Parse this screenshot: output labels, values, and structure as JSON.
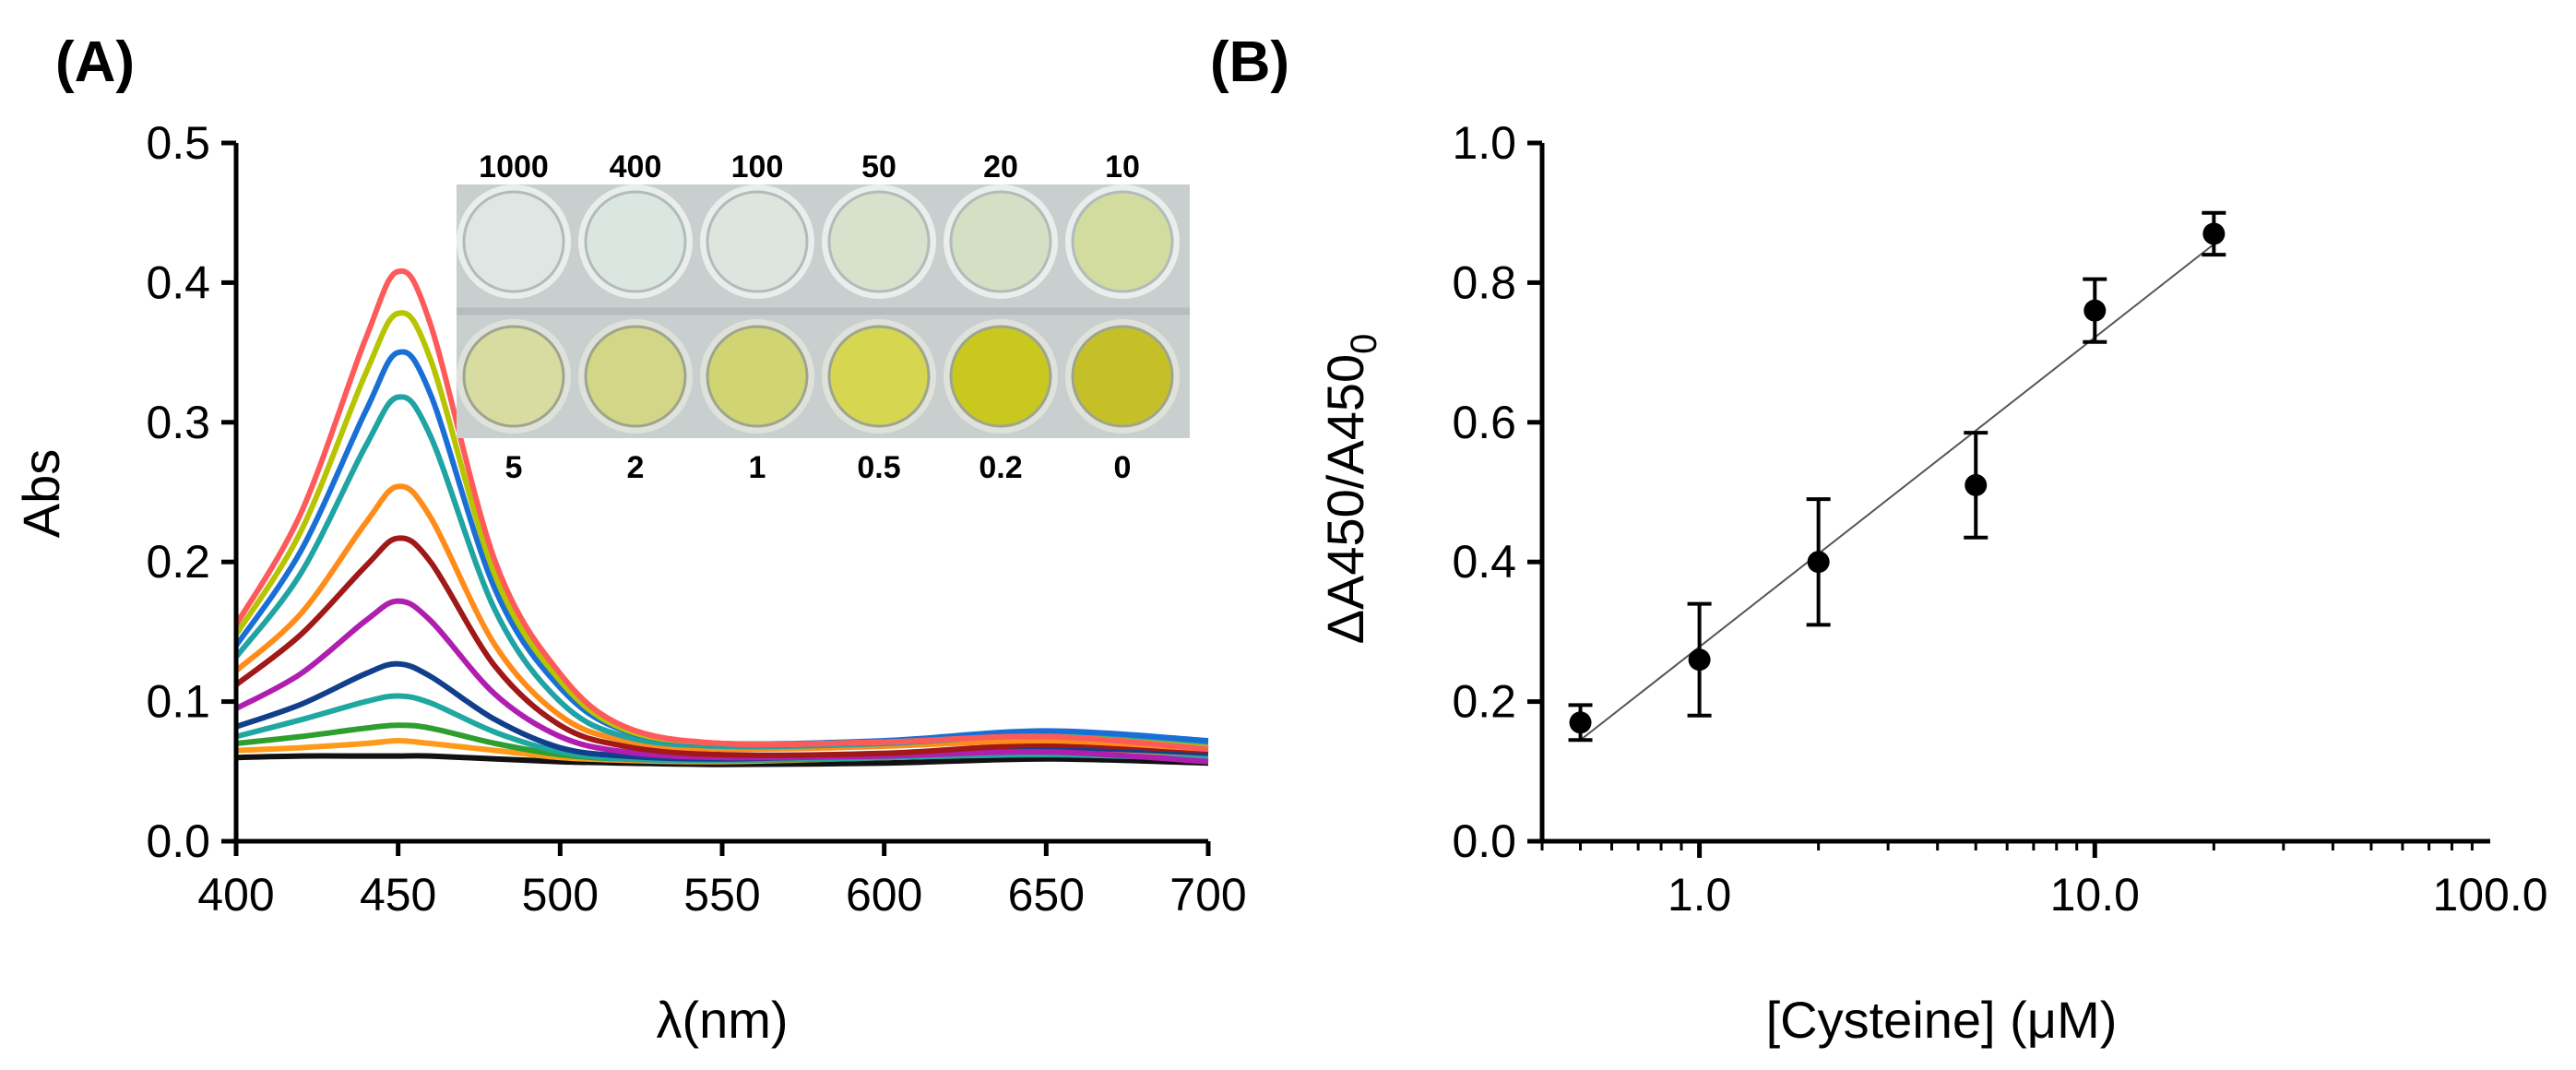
{
  "chart_data": [
    {
      "panel": "(A)",
      "type": "line",
      "xlabel": "λ(nm)",
      "ylabel": "Abs",
      "xlim": [
        400,
        700
      ],
      "ylim": [
        0,
        0.5
      ],
      "x_ticks": [
        "400",
        "450",
        "500",
        "550",
        "600",
        "650",
        "700"
      ],
      "y_ticks": [
        "0.0",
        "0.1",
        "0.2",
        "0.3",
        "0.4",
        "0.5"
      ],
      "grid": false,
      "legend": "none",
      "series": [
        {
          "name": "1000",
          "color": "#ff5a5a",
          "values": [
            [
              400,
              0.155
            ],
            [
              420,
              0.235
            ],
            [
              440,
              0.36
            ],
            [
              450,
              0.408
            ],
            [
              460,
              0.37
            ],
            [
              480,
              0.2
            ],
            [
              500,
              0.12
            ],
            [
              520,
              0.082
            ],
            [
              550,
              0.07
            ],
            [
              600,
              0.071
            ],
            [
              650,
              0.075
            ],
            [
              700,
              0.066
            ]
          ]
        },
        {
          "name": "400",
          "color": "#b7c400",
          "values": [
            [
              400,
              0.148
            ],
            [
              420,
              0.222
            ],
            [
              440,
              0.335
            ],
            [
              450,
              0.378
            ],
            [
              460,
              0.345
            ],
            [
              480,
              0.19
            ],
            [
              500,
              0.115
            ],
            [
              520,
              0.08
            ],
            [
              550,
              0.07
            ],
            [
              600,
              0.071
            ],
            [
              650,
              0.075
            ],
            [
              700,
              0.067
            ]
          ]
        },
        {
          "name": "100",
          "color": "#1a6fd6",
          "values": [
            [
              400,
              0.14
            ],
            [
              420,
              0.208
            ],
            [
              440,
              0.308
            ],
            [
              450,
              0.35
            ],
            [
              460,
              0.32
            ],
            [
              480,
              0.18
            ],
            [
              500,
              0.11
            ],
            [
              520,
              0.079
            ],
            [
              550,
              0.07
            ],
            [
              600,
              0.072
            ],
            [
              650,
              0.079
            ],
            [
              700,
              0.072
            ]
          ]
        },
        {
          "name": "50",
          "color": "#1fa3a3",
          "values": [
            [
              400,
              0.132
            ],
            [
              420,
              0.192
            ],
            [
              440,
              0.283
            ],
            [
              450,
              0.318
            ],
            [
              460,
              0.29
            ],
            [
              480,
              0.165
            ],
            [
              500,
              0.1
            ],
            [
              520,
              0.075
            ],
            [
              550,
              0.068
            ],
            [
              600,
              0.07
            ],
            [
              650,
              0.076
            ],
            [
              700,
              0.07
            ]
          ]
        },
        {
          "name": "20",
          "color": "#ff8c1a",
          "values": [
            [
              400,
              0.122
            ],
            [
              420,
              0.163
            ],
            [
              440,
              0.228
            ],
            [
              450,
              0.254
            ],
            [
              460,
              0.232
            ],
            [
              480,
              0.14
            ],
            [
              500,
              0.09
            ],
            [
              520,
              0.072
            ],
            [
              550,
              0.066
            ],
            [
              600,
              0.068
            ],
            [
              650,
              0.072
            ],
            [
              700,
              0.066
            ]
          ]
        },
        {
          "name": "10",
          "color": "#a01818",
          "values": [
            [
              400,
              0.112
            ],
            [
              420,
              0.148
            ],
            [
              440,
              0.197
            ],
            [
              450,
              0.217
            ],
            [
              460,
              0.2
            ],
            [
              480,
              0.125
            ],
            [
              500,
              0.083
            ],
            [
              520,
              0.068
            ],
            [
              550,
              0.062
            ],
            [
              600,
              0.063
            ],
            [
              650,
              0.069
            ],
            [
              700,
              0.065
            ]
          ]
        },
        {
          "name": "5",
          "color": "#b01eb0",
          "values": [
            [
              400,
              0.095
            ],
            [
              420,
              0.12
            ],
            [
              440,
              0.158
            ],
            [
              450,
              0.172
            ],
            [
              460,
              0.158
            ],
            [
              480,
              0.105
            ],
            [
              500,
              0.075
            ],
            [
              520,
              0.064
            ],
            [
              550,
              0.06
            ],
            [
              600,
              0.061
            ],
            [
              650,
              0.064
            ],
            [
              700,
              0.057
            ]
          ]
        },
        {
          "name": "2",
          "color": "#123f8c",
          "values": [
            [
              400,
              0.082
            ],
            [
              420,
              0.098
            ],
            [
              440,
              0.12
            ],
            [
              450,
              0.127
            ],
            [
              460,
              0.118
            ],
            [
              480,
              0.087
            ],
            [
              500,
              0.067
            ],
            [
              520,
              0.061
            ],
            [
              550,
              0.059
            ],
            [
              600,
              0.062
            ],
            [
              650,
              0.067
            ],
            [
              700,
              0.063
            ]
          ]
        },
        {
          "name": "1",
          "color": "#20a8a0",
          "values": [
            [
              400,
              0.075
            ],
            [
              420,
              0.087
            ],
            [
              440,
              0.1
            ],
            [
              450,
              0.104
            ],
            [
              460,
              0.099
            ],
            [
              480,
              0.078
            ],
            [
              500,
              0.064
            ],
            [
              520,
              0.059
            ],
            [
              550,
              0.058
            ],
            [
              600,
              0.06
            ],
            [
              650,
              0.062
            ],
            [
              700,
              0.059
            ]
          ]
        },
        {
          "name": "0.5",
          "color": "#2e9e2e",
          "values": [
            [
              400,
              0.07
            ],
            [
              420,
              0.075
            ],
            [
              440,
              0.081
            ],
            [
              450,
              0.083
            ],
            [
              460,
              0.081
            ],
            [
              480,
              0.07
            ],
            [
              500,
              0.062
            ],
            [
              520,
              0.059
            ],
            [
              550,
              0.058
            ],
            [
              600,
              0.06
            ],
            [
              650,
              0.066
            ],
            [
              700,
              0.07
            ]
          ]
        },
        {
          "name": "0.2",
          "color": "#ff9a1a",
          "values": [
            [
              400,
              0.065
            ],
            [
              420,
              0.067
            ],
            [
              440,
              0.07
            ],
            [
              450,
              0.072
            ],
            [
              460,
              0.07
            ],
            [
              480,
              0.065
            ],
            [
              500,
              0.06
            ],
            [
              520,
              0.058
            ],
            [
              550,
              0.057
            ],
            [
              600,
              0.06
            ],
            [
              650,
              0.064
            ],
            [
              700,
              0.062
            ]
          ]
        },
        {
          "name": "0",
          "color": "#111111",
          "values": [
            [
              400,
              0.06
            ],
            [
              420,
              0.061
            ],
            [
              440,
              0.061
            ],
            [
              450,
              0.061
            ],
            [
              460,
              0.061
            ],
            [
              480,
              0.059
            ],
            [
              500,
              0.057
            ],
            [
              520,
              0.056
            ],
            [
              550,
              0.055
            ],
            [
              600,
              0.056
            ],
            [
              650,
              0.059
            ],
            [
              700,
              0.056
            ]
          ]
        }
      ],
      "inset": {
        "description": "well plate photograph",
        "top_labels": [
          "1000",
          "400",
          "100",
          "50",
          "20",
          "10"
        ],
        "bottom_labels": [
          "5",
          "2",
          "1",
          "0.5",
          "0.2",
          "0"
        ],
        "top_row_colors": [
          "#dfe7e4",
          "#dce6e0",
          "#dde6de",
          "#d7e2cd",
          "#d4e0c3",
          "#d2dc9e"
        ],
        "bottom_row_colors": [
          "#d8dca0",
          "#d2d686",
          "#d0d472",
          "#d6d650",
          "#c8c81e",
          "#c6c028"
        ]
      }
    },
    {
      "panel": "(B)",
      "type": "scatter",
      "xlabel": "[Cysteine] (μM)",
      "ylabel_main": "ΔA450/A450",
      "ylabel_sub": "0",
      "xscale": "log",
      "xlim": [
        0.4,
        100
      ],
      "ylim": [
        0,
        1
      ],
      "x_ticks": [
        "1.0",
        "10.0",
        "100.0"
      ],
      "y_ticks": [
        "0.0",
        "0.2",
        "0.4",
        "0.6",
        "0.8",
        "1.0"
      ],
      "grid": false,
      "legend": "none",
      "points": [
        {
          "x": 0.5,
          "y": 0.17,
          "err": 0.025
        },
        {
          "x": 1,
          "y": 0.26,
          "err": 0.08
        },
        {
          "x": 2,
          "y": 0.4,
          "err": 0.09
        },
        {
          "x": 5,
          "y": 0.51,
          "err": 0.075
        },
        {
          "x": 10,
          "y": 0.76,
          "err": 0.045
        },
        {
          "x": 20,
          "y": 0.87,
          "err": 0.03
        }
      ],
      "fit_line": {
        "x": [
          0.5,
          20
        ],
        "y": [
          0.145,
          0.855
        ]
      }
    }
  ]
}
